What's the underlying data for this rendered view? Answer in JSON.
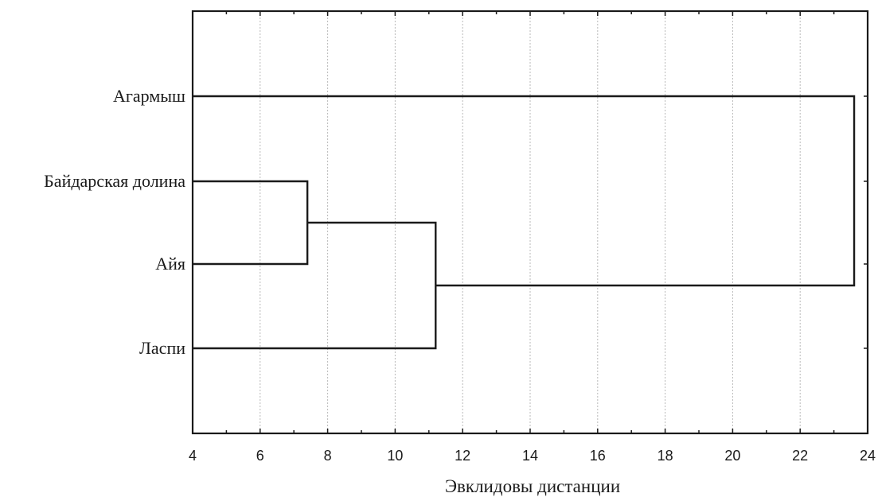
{
  "chart_data": {
    "type": "dendrogram",
    "orientation": "horizontal",
    "xlabel": "Эвклидовы дистанции",
    "xlim": [
      4,
      24
    ],
    "xticks": [
      4,
      6,
      8,
      10,
      12,
      14,
      16,
      18,
      20,
      22,
      24
    ],
    "grid": true,
    "leaves": [
      "Агармыш",
      "Байдарская долина",
      "Айя",
      "Ласпи"
    ],
    "merges": [
      {
        "left": "Байдарская долина",
        "right": "Айя",
        "distance": 7.4
      },
      {
        "left": "Байдарская долина + Айя",
        "right": "Ласпи",
        "distance": 11.2
      },
      {
        "left": "Агармыш",
        "right": "Байдарская долина + Айя + Ласпи",
        "distance": 23.6
      }
    ]
  }
}
